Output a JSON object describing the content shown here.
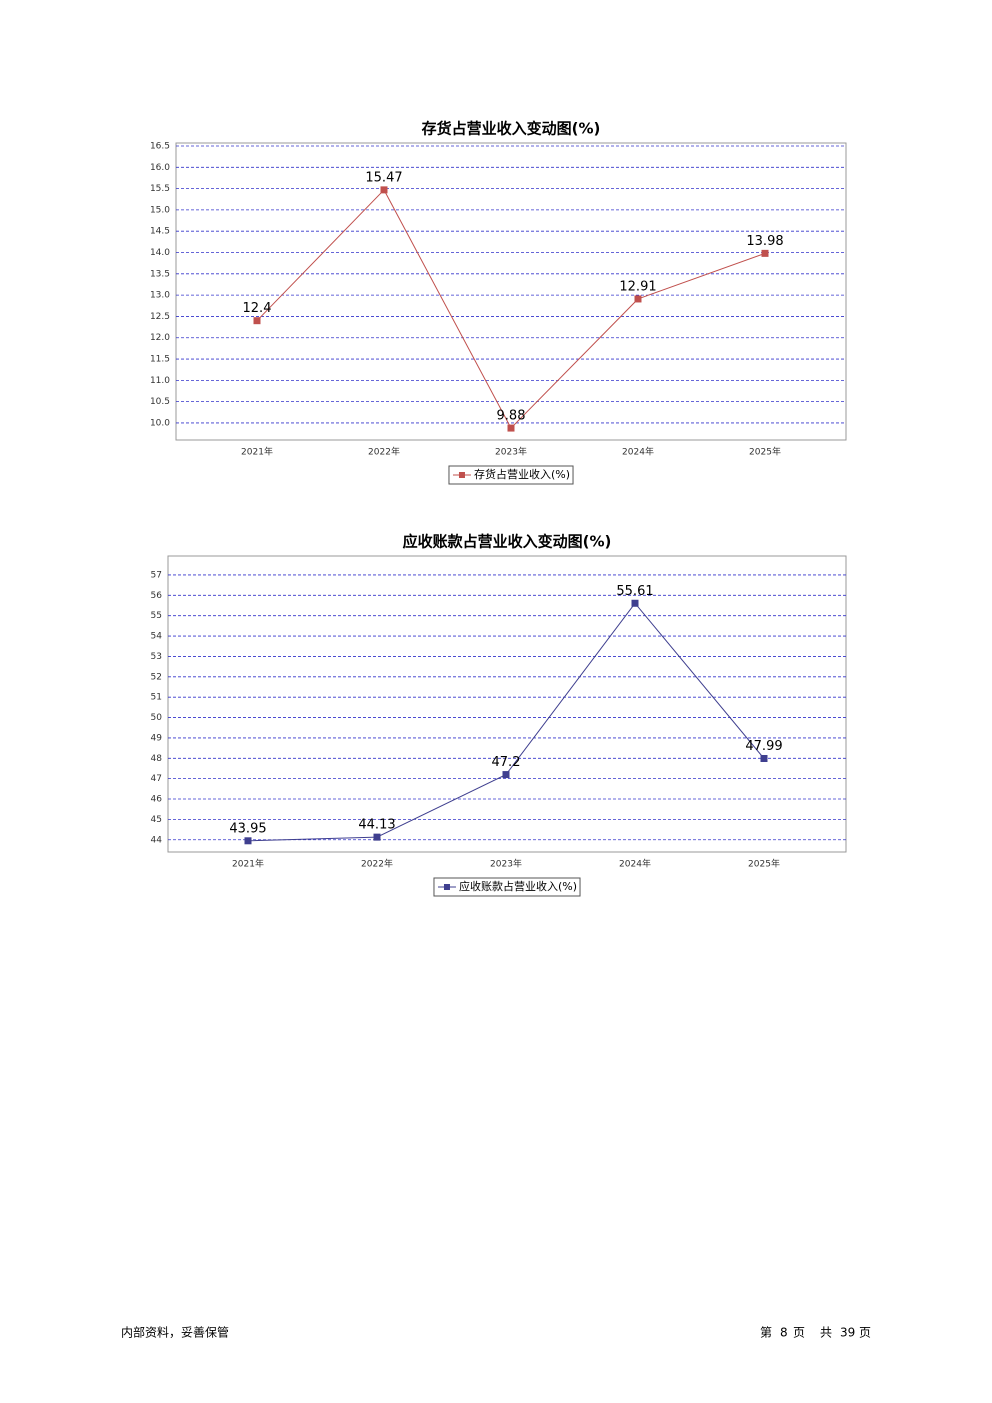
{
  "chart_data": [
    {
      "type": "line",
      "title": "存货占营业收入变动图(%)",
      "categories": [
        "2021年",
        "2022年",
        "2023年",
        "2024年",
        "2025年"
      ],
      "series": [
        {
          "name": "存货占营业收入(%)",
          "color": "#c0504d",
          "values": [
            12.4,
            15.47,
            9.88,
            12.91,
            13.98
          ]
        }
      ],
      "ylim": [
        9.6,
        16.57
      ],
      "yticks": [
        {
          "value": 10,
          "label": "10.0"
        },
        10.5,
        {
          "value": 11,
          "label": "11.0"
        },
        11.5,
        {
          "value": 12,
          "label": "12.0"
        },
        12.5,
        {
          "value": 13,
          "label": "13.0"
        },
        13.5,
        {
          "value": 14,
          "label": "14.0"
        },
        14.5,
        {
          "value": 15,
          "label": "15.0"
        },
        15.5,
        {
          "value": 16,
          "label": "16.0"
        },
        16.5
      ],
      "grid": true,
      "legend": "bottom"
    },
    {
      "type": "line",
      "title": "应收账款占营业收入变动图(%)",
      "categories": [
        "2021年",
        "2022年",
        "2023年",
        "2024年",
        "2025年"
      ],
      "series": [
        {
          "name": "应收账款占营业收入(%)",
          "color": "#3f3f8f",
          "values": [
            43.95,
            44.13,
            47.2,
            55.61,
            47.99
          ]
        }
      ],
      "ylim": [
        43.4,
        57.93
      ],
      "yticks": [
        44,
        45,
        46,
        47,
        48,
        49,
        50,
        51,
        52,
        53,
        54,
        55,
        56,
        57
      ],
      "grid": true,
      "legend": "bottom"
    }
  ],
  "footer": {
    "left": "内部资料，妥善保管",
    "page": [
      "第",
      "8",
      "页",
      "共",
      "39",
      "页"
    ]
  }
}
